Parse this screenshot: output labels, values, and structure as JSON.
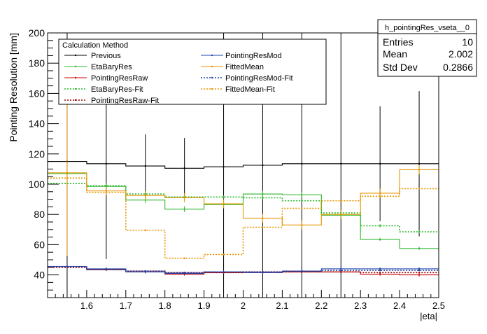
{
  "chart_data": {
    "type": "line",
    "title": "",
    "xlabel": "|eta|",
    "ylabel": "Pointing Resolution [mm]",
    "xlim": [
      1.5,
      2.5
    ],
    "ylim": [
      25,
      200
    ],
    "x_ticks": [
      1.6,
      1.7,
      1.8,
      1.9,
      2.0,
      2.1,
      2.2,
      2.3,
      2.4,
      2.5
    ],
    "x_tick_labels": [
      "1.6",
      "1.7",
      "1.8",
      "1.9",
      "2",
      "2.1",
      "2.2",
      "2.3",
      "2.4",
      "2.5"
    ],
    "y_ticks": [
      40,
      60,
      80,
      100,
      120,
      140,
      160,
      180,
      200
    ],
    "y_tick_labels": [
      "40",
      "60",
      "80",
      "100",
      "120",
      "140",
      "160",
      "180",
      "200"
    ],
    "bin_edges": [
      1.5,
      1.6,
      1.7,
      1.8,
      1.9,
      2.0,
      2.1,
      2.2,
      2.3,
      2.4,
      2.5
    ],
    "grid": false,
    "legend": {
      "title": "Calculation Method",
      "placement": "top-left",
      "columns": 2,
      "entries": [
        {
          "label": "Previous",
          "series": 0
        },
        {
          "label": "EtaBaryRes",
          "series": 1
        },
        {
          "label": "PointingResRaw",
          "series": 2
        },
        {
          "label": "EtaBaryRes-Fit",
          "series": 3
        },
        {
          "label": "PointingResRaw-Fit",
          "series": 4
        },
        {
          "label": "PointingResMod",
          "series": 5
        },
        {
          "label": "FittedMean",
          "series": 6
        },
        {
          "label": "PointingResMod-Fit",
          "series": 7
        },
        {
          "label": "FittedMean-Fit",
          "series": 8
        }
      ]
    },
    "stats_box": {
      "name": "h_pointingRes_vseta__0",
      "rows": [
        {
          "label": "Entries",
          "value": "10"
        },
        {
          "label": "Mean",
          "value": "2.002"
        },
        {
          "label": "Std Dev",
          "value": "0.2866"
        }
      ],
      "placement": "top-right"
    },
    "series": [
      {
        "name": "Previous",
        "color": "#000000",
        "style": "solid",
        "values": [
          115,
          113.5,
          112,
          110.5,
          111.5,
          112.5,
          113.5,
          113.5,
          113.5,
          113.5
        ],
        "errors": [
          110,
          63,
          21,
          20,
          110,
          110,
          110,
          110,
          38,
          48
        ]
      },
      {
        "name": "EtaBaryRes",
        "color": "#2db82d",
        "style": "solid",
        "values": [
          107,
          98.5,
          89.5,
          83.5,
          86.5,
          93.5,
          93,
          79.5,
          63.5,
          57.5
        ],
        "errors": [
          3,
          2,
          2,
          2,
          2,
          2,
          2,
          2,
          1,
          1
        ]
      },
      {
        "name": "PointingResRaw",
        "color": "#cc0000",
        "style": "solid",
        "values": [
          45.5,
          43.5,
          42,
          40.5,
          41.5,
          41.5,
          42,
          42,
          40.5,
          40
        ],
        "errors": [
          1,
          1,
          1,
          1,
          1,
          1,
          1,
          1,
          1,
          1
        ]
      },
      {
        "name": "EtaBaryRes-Fit",
        "color": "#2db82d",
        "style": "dotted",
        "values": [
          100.5,
          99,
          93.5,
          91.5,
          91.5,
          91,
          89,
          81,
          72.5,
          68.5
        ],
        "errors": [
          1,
          1,
          1,
          1,
          1,
          1,
          1,
          1,
          1,
          1
        ]
      },
      {
        "name": "PointingResRaw-Fit",
        "color": "#990000",
        "style": "dotted",
        "values": [
          45,
          43.5,
          42.5,
          41.5,
          41.5,
          42,
          42,
          42,
          41.5,
          41.5
        ],
        "errors": [
          0.5,
          0.5,
          0.5,
          0.5,
          0.5,
          0.5,
          0.5,
          0.5,
          0.5,
          0.5
        ]
      },
      {
        "name": "PointingResMod",
        "color": "#2244aa",
        "style": "solid",
        "values": [
          45.5,
          44,
          42,
          41,
          42,
          41.5,
          42.5,
          44,
          44,
          44
        ],
        "errors": [
          1,
          1,
          1,
          1,
          1,
          1,
          1,
          1,
          1,
          1
        ]
      },
      {
        "name": "FittedMean",
        "color": "#e69500",
        "style": "solid",
        "values": [
          107.5,
          95.5,
          92.5,
          91,
          87,
          77.5,
          73,
          80,
          94,
          109.5
        ],
        "errors": [
          55,
          3,
          3,
          3,
          3,
          3,
          3,
          3,
          3,
          3
        ]
      },
      {
        "name": "PointingResMod-Fit",
        "color": "#2244aa",
        "style": "dotted",
        "values": [
          45.5,
          43.5,
          42.5,
          41.5,
          42,
          42,
          42.5,
          43,
          43,
          43
        ],
        "errors": [
          0.5,
          0.5,
          0.5,
          0.5,
          0.5,
          0.5,
          0.5,
          0.5,
          0.5,
          0.5
        ]
      },
      {
        "name": "FittedMean-Fit",
        "color": "#e69500",
        "style": "dotted",
        "values": [
          104,
          94.5,
          69.5,
          51,
          53.5,
          71.5,
          84,
          89,
          92,
          97
        ],
        "errors": [
          0.5,
          0.5,
          0.5,
          0.5,
          0.5,
          0.5,
          0.5,
          0.5,
          0.5,
          0.5
        ]
      }
    ]
  }
}
